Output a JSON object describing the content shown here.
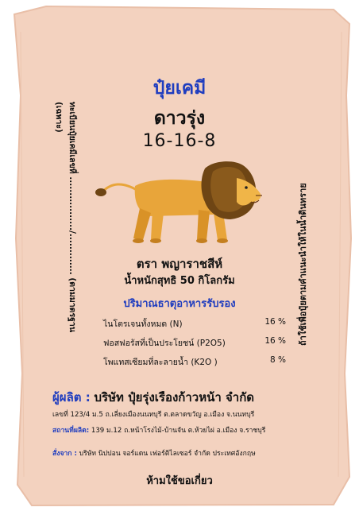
{
  "product": {
    "type": "ปุ๋ยเคมี",
    "name": "ดาวรุ่ง",
    "formula": "16-16-8"
  },
  "brand": "ตรา พญาราชสีห์",
  "net_weight": "น้ำหนักสุทธิ 50 กิโลกรัม",
  "left_side": {
    "label": "ทะเบียนปุ๋ยเคมีเลขที่ ................./............. (ตามมาตรฐาน (เฉพาะ)"
  },
  "right_side": {
    "text": "ถ้าใช้เพื่อปุ๋ยตามคำแนะนำให้ในน้ำดินทราย"
  },
  "nutrients": {
    "heading": "ปริมาณธาตุอาหารรับรอง",
    "rows": [
      {
        "name": "ไนโตรเจนทั้งหมด (N)",
        "value": "16 %"
      },
      {
        "name": "ฟอสฟอรัสที่เป็นประโยชน์ (P2O5)",
        "value": "16 %"
      },
      {
        "name": "โพแทสเซียมที่ละลายน้ำ (K2O )",
        "value": "8 %"
      }
    ]
  },
  "manufacturer": {
    "label": "ผู้ผลิต :",
    "company": "บริษัท ปุ๋ยรุ่งเรืองก้าวหน้า จำกัด",
    "address": "เลขที่ 123/4 ม.5 ถ.เลี่ยงเมืองนนทบุรี ต.ตลาดขวัญ อ.เมือง จ.นนทบุรี"
  },
  "factory": {
    "label": "สถานที่ผลิต:",
    "address": "139 ม.12 ถ.หน้าโรงไม้-บ้านจัน ต.ห้วยไผ่ อ.เมือง จ.ราชบุรี"
  },
  "import": {
    "label": "สั่งจาก :",
    "text": "บริษัท นิปปอน จอร์แดน เฟอร์ติไลเซอร์ จำกัด ประเทศอังกฤษ"
  },
  "warning": "ห้ามใช้ขอเกี่ยว",
  "colors": {
    "bag": "#f3d2bf",
    "bag_edge": "#e9bfa8",
    "accent_blue": "#1f3dbf",
    "lion_body": "#e8a53a",
    "lion_mane": "#6e4514"
  },
  "illustration": "lion-icon"
}
